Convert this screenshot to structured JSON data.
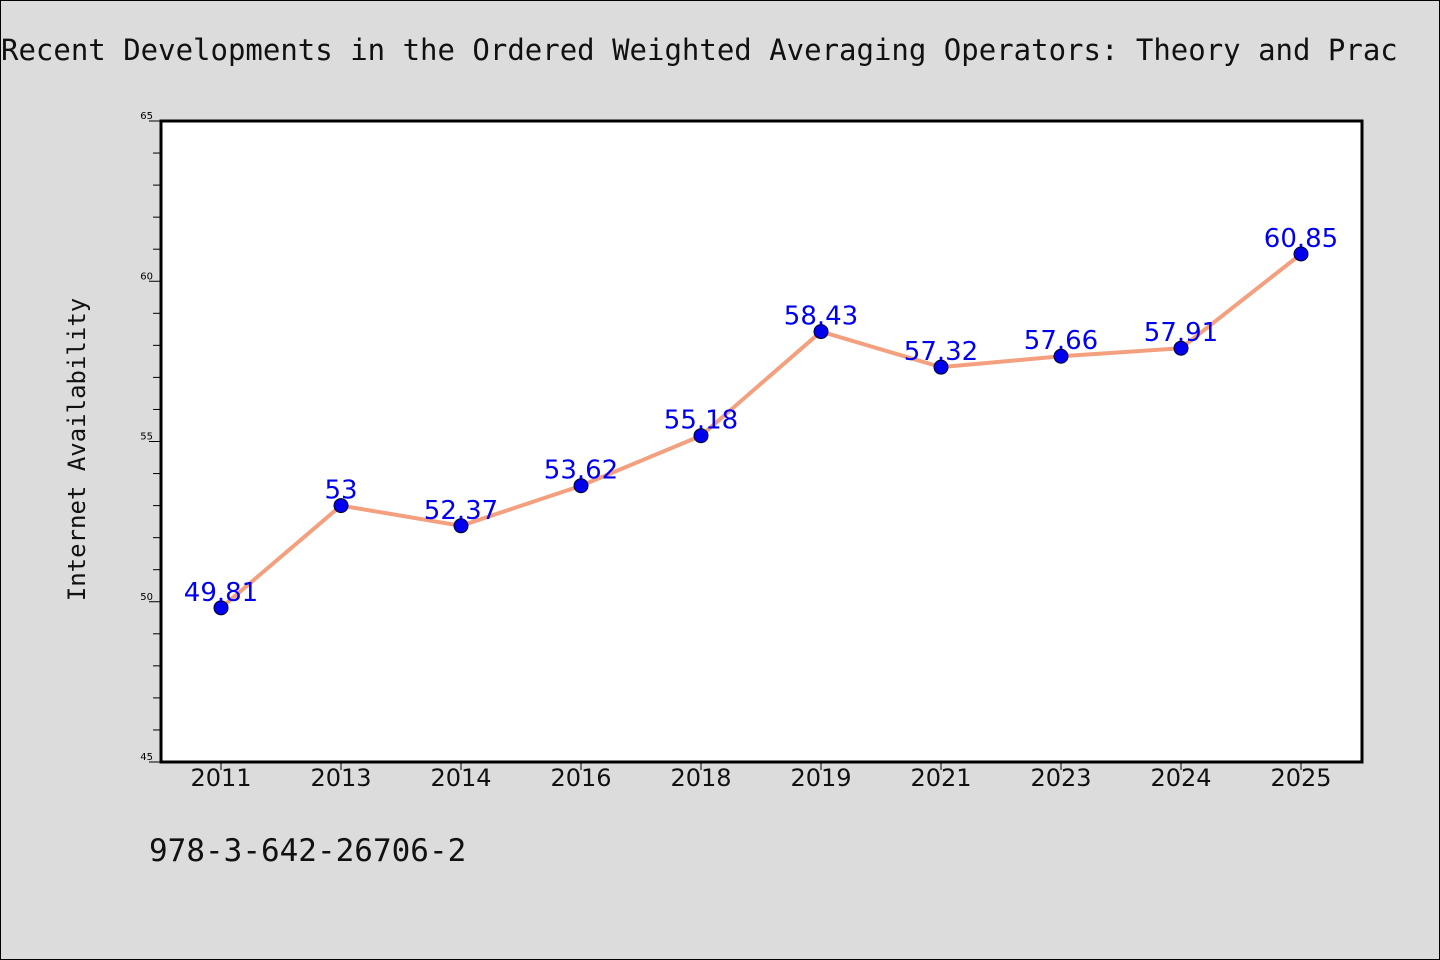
{
  "page": {
    "title": "Recent Developments in the Ordered Weighted Averaging Operators: Theory and Prac",
    "footnote": "978-3-642-26706-2"
  },
  "colors": {
    "background": "#dcdcdc",
    "plot_background": "#ffffff",
    "line": "#f4a07e",
    "marker": "#0000ee",
    "label": "#0000ee"
  },
  "chart_data": {
    "type": "line",
    "title": "Recent Developments in the Ordered Weighted Averaging Operators: Theory and Prac",
    "xlabel": "",
    "ylabel": "Internet Availability",
    "categories": [
      "2011",
      "2013",
      "2014",
      "2016",
      "2018",
      "2019",
      "2021",
      "2023",
      "2024",
      "2025"
    ],
    "series": [
      {
        "values": [
          49.81,
          53,
          52.37,
          53.62,
          55.18,
          58.43,
          57.32,
          57.66,
          57.91,
          60.85
        ],
        "labels": [
          "49.81",
          "53",
          "52.37",
          "53.62",
          "55.18",
          "58.43",
          "57.32",
          "57.66",
          "57.91",
          "60.85"
        ]
      }
    ],
    "ylim": [
      45,
      65
    ],
    "y_major_ticks": [
      45,
      50,
      55,
      60,
      65
    ],
    "y_major_tick_labels": [
      "45",
      "50",
      "55",
      "60",
      "65"
    ],
    "y_minor_step": 1,
    "grid": false,
    "legend": "none"
  }
}
